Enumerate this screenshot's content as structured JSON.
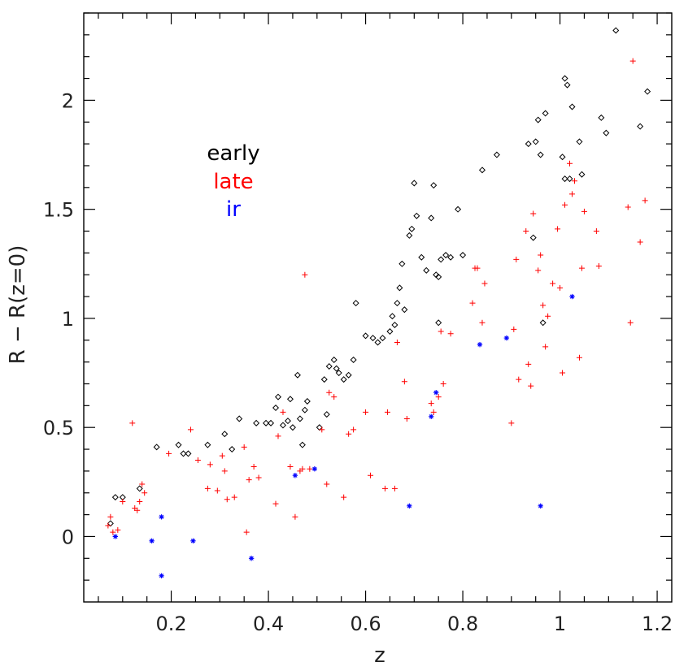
{
  "chart_data": {
    "type": "scatter",
    "xlabel": "z",
    "ylabel": "R − R(z=0)",
    "xlim": [
      0.02,
      1.23
    ],
    "ylim": [
      -0.3,
      2.4
    ],
    "xticks": [
      {
        "value": 0.2,
        "label": "0.2"
      },
      {
        "value": 0.4,
        "label": "0.4"
      },
      {
        "value": 0.6,
        "label": "0.6"
      },
      {
        "value": 0.8,
        "label": "0.8"
      },
      {
        "value": 1.0,
        "label": "1"
      },
      {
        "value": 1.2,
        "label": "1.2"
      }
    ],
    "yticks": [
      {
        "value": 0,
        "label": "0"
      },
      {
        "value": 0.5,
        "label": "0.5"
      },
      {
        "value": 1.0,
        "label": "1"
      },
      {
        "value": 1.5,
        "label": "1.5"
      },
      {
        "value": 2.0,
        "label": "2"
      }
    ],
    "x_minor_step": 0.05,
    "y_minor_step": 0.1,
    "grid": false,
    "legend_position": "upper-left",
    "series": [
      {
        "name": "early",
        "color": "#000000",
        "marker": "diamond",
        "points": [
          [
            0.075,
            0.06
          ],
          [
            0.085,
            0.18
          ],
          [
            0.1,
            0.18
          ],
          [
            0.135,
            0.22
          ],
          [
            0.17,
            0.41
          ],
          [
            0.215,
            0.42
          ],
          [
            0.225,
            0.38
          ],
          [
            0.235,
            0.38
          ],
          [
            0.275,
            0.42
          ],
          [
            0.31,
            0.47
          ],
          [
            0.325,
            0.4
          ],
          [
            0.34,
            0.54
          ],
          [
            0.375,
            0.52
          ],
          [
            0.395,
            0.52
          ],
          [
            0.405,
            0.52
          ],
          [
            0.415,
            0.59
          ],
          [
            0.42,
            0.64
          ],
          [
            0.43,
            0.51
          ],
          [
            0.44,
            0.53
          ],
          [
            0.445,
            0.63
          ],
          [
            0.45,
            0.5
          ],
          [
            0.46,
            0.74
          ],
          [
            0.465,
            0.54
          ],
          [
            0.47,
            0.42
          ],
          [
            0.475,
            0.58
          ],
          [
            0.48,
            0.62
          ],
          [
            0.505,
            0.5
          ],
          [
            0.515,
            0.72
          ],
          [
            0.52,
            0.56
          ],
          [
            0.525,
            0.78
          ],
          [
            0.535,
            0.81
          ],
          [
            0.54,
            0.77
          ],
          [
            0.545,
            0.75
          ],
          [
            0.555,
            0.72
          ],
          [
            0.565,
            0.74
          ],
          [
            0.575,
            0.81
          ],
          [
            0.58,
            1.07
          ],
          [
            0.6,
            0.92
          ],
          [
            0.615,
            0.91
          ],
          [
            0.625,
            0.89
          ],
          [
            0.635,
            0.91
          ],
          [
            0.65,
            0.94
          ],
          [
            0.655,
            1.01
          ],
          [
            0.66,
            0.97
          ],
          [
            0.665,
            1.07
          ],
          [
            0.67,
            1.14
          ],
          [
            0.675,
            1.25
          ],
          [
            0.68,
            1.04
          ],
          [
            0.69,
            1.38
          ],
          [
            0.695,
            1.41
          ],
          [
            0.7,
            1.62
          ],
          [
            0.705,
            1.47
          ],
          [
            0.715,
            1.28
          ],
          [
            0.725,
            1.22
          ],
          [
            0.735,
            1.46
          ],
          [
            0.74,
            1.61
          ],
          [
            0.745,
            1.2
          ],
          [
            0.75,
            1.19
          ],
          [
            0.755,
            1.27
          ],
          [
            0.765,
            1.29
          ],
          [
            0.775,
            1.28
          ],
          [
            0.79,
            1.5
          ],
          [
            0.8,
            1.29
          ],
          [
            0.84,
            1.68
          ],
          [
            0.87,
            1.75
          ],
          [
            0.935,
            1.8
          ],
          [
            0.945,
            1.37
          ],
          [
            0.95,
            1.81
          ],
          [
            0.955,
            1.91
          ],
          [
            0.96,
            1.75
          ],
          [
            0.97,
            1.94
          ],
          [
            1.005,
            1.74
          ],
          [
            1.01,
            2.1
          ],
          [
            1.01,
            1.64
          ],
          [
            1.015,
            2.07
          ],
          [
            1.02,
            1.64
          ],
          [
            1.025,
            1.97
          ],
          [
            1.04,
            1.81
          ],
          [
            1.045,
            1.66
          ],
          [
            1.085,
            1.92
          ],
          [
            1.095,
            1.85
          ],
          [
            1.115,
            2.32
          ],
          [
            1.165,
            1.88
          ],
          [
            1.18,
            2.04
          ],
          [
            0.965,
            0.98
          ],
          [
            0.75,
            0.98
          ]
        ]
      },
      {
        "name": "late",
        "color": "#ff0000",
        "marker": "plus",
        "points": [
          [
            0.07,
            0.05
          ],
          [
            0.075,
            0.09
          ],
          [
            0.08,
            0.02
          ],
          [
            0.09,
            0.03
          ],
          [
            0.1,
            0.16
          ],
          [
            0.12,
            0.52
          ],
          [
            0.125,
            0.13
          ],
          [
            0.13,
            0.12
          ],
          [
            0.135,
            0.16
          ],
          [
            0.14,
            0.24
          ],
          [
            0.145,
            0.2
          ],
          [
            0.195,
            0.38
          ],
          [
            0.24,
            0.49
          ],
          [
            0.255,
            0.35
          ],
          [
            0.275,
            0.22
          ],
          [
            0.28,
            0.33
          ],
          [
            0.295,
            0.21
          ],
          [
            0.305,
            0.37
          ],
          [
            0.31,
            0.3
          ],
          [
            0.315,
            0.17
          ],
          [
            0.33,
            0.18
          ],
          [
            0.35,
            0.41
          ],
          [
            0.355,
            0.02
          ],
          [
            0.36,
            0.26
          ],
          [
            0.37,
            0.32
          ],
          [
            0.38,
            0.27
          ],
          [
            0.415,
            0.15
          ],
          [
            0.42,
            0.46
          ],
          [
            0.43,
            0.57
          ],
          [
            0.445,
            0.32
          ],
          [
            0.455,
            0.09
          ],
          [
            0.465,
            0.3
          ],
          [
            0.47,
            0.31
          ],
          [
            0.475,
            1.2
          ],
          [
            0.485,
            0.31
          ],
          [
            0.51,
            0.49
          ],
          [
            0.52,
            0.24
          ],
          [
            0.525,
            0.66
          ],
          [
            0.535,
            0.64
          ],
          [
            0.555,
            0.18
          ],
          [
            0.565,
            0.47
          ],
          [
            0.575,
            0.49
          ],
          [
            0.6,
            0.57
          ],
          [
            0.61,
            0.28
          ],
          [
            0.64,
            0.22
          ],
          [
            0.645,
            0.57
          ],
          [
            0.66,
            0.22
          ],
          [
            0.665,
            0.89
          ],
          [
            0.68,
            0.71
          ],
          [
            0.685,
            0.54
          ],
          [
            0.735,
            0.61
          ],
          [
            0.74,
            0.57
          ],
          [
            0.75,
            0.64
          ],
          [
            0.755,
            0.94
          ],
          [
            0.76,
            0.7
          ],
          [
            0.775,
            0.93
          ],
          [
            0.82,
            1.07
          ],
          [
            0.825,
            1.23
          ],
          [
            0.83,
            1.23
          ],
          [
            0.84,
            0.98
          ],
          [
            0.845,
            1.16
          ],
          [
            0.9,
            0.52
          ],
          [
            0.905,
            0.95
          ],
          [
            0.91,
            1.27
          ],
          [
            0.915,
            0.72
          ],
          [
            0.93,
            1.4
          ],
          [
            0.935,
            0.79
          ],
          [
            0.94,
            0.69
          ],
          [
            0.945,
            1.48
          ],
          [
            0.955,
            1.22
          ],
          [
            0.96,
            1.29
          ],
          [
            0.965,
            1.06
          ],
          [
            0.97,
            0.87
          ],
          [
            0.975,
            1.01
          ],
          [
            0.985,
            1.16
          ],
          [
            0.995,
            1.41
          ],
          [
            1.0,
            1.14
          ],
          [
            1.005,
            0.75
          ],
          [
            1.01,
            1.52
          ],
          [
            1.02,
            1.71
          ],
          [
            1.025,
            1.57
          ],
          [
            1.03,
            1.63
          ],
          [
            1.04,
            0.82
          ],
          [
            1.045,
            1.23
          ],
          [
            1.05,
            1.49
          ],
          [
            1.075,
            1.4
          ],
          [
            1.08,
            1.24
          ],
          [
            1.14,
            1.51
          ],
          [
            1.145,
            0.98
          ],
          [
            1.15,
            2.18
          ],
          [
            1.165,
            1.35
          ],
          [
            1.175,
            1.54
          ]
        ]
      },
      {
        "name": "ir",
        "color": "#0000ff",
        "marker": "asterisk",
        "points": [
          [
            0.085,
            0.0
          ],
          [
            0.16,
            -0.02
          ],
          [
            0.18,
            0.09
          ],
          [
            0.18,
            -0.18
          ],
          [
            0.245,
            -0.02
          ],
          [
            0.365,
            -0.1
          ],
          [
            0.455,
            0.28
          ],
          [
            0.495,
            0.31
          ],
          [
            0.69,
            0.14
          ],
          [
            0.735,
            0.55
          ],
          [
            0.745,
            0.66
          ],
          [
            0.835,
            0.88
          ],
          [
            0.89,
            0.91
          ],
          [
            0.96,
            0.14
          ],
          [
            1.025,
            1.1
          ]
        ]
      }
    ]
  }
}
